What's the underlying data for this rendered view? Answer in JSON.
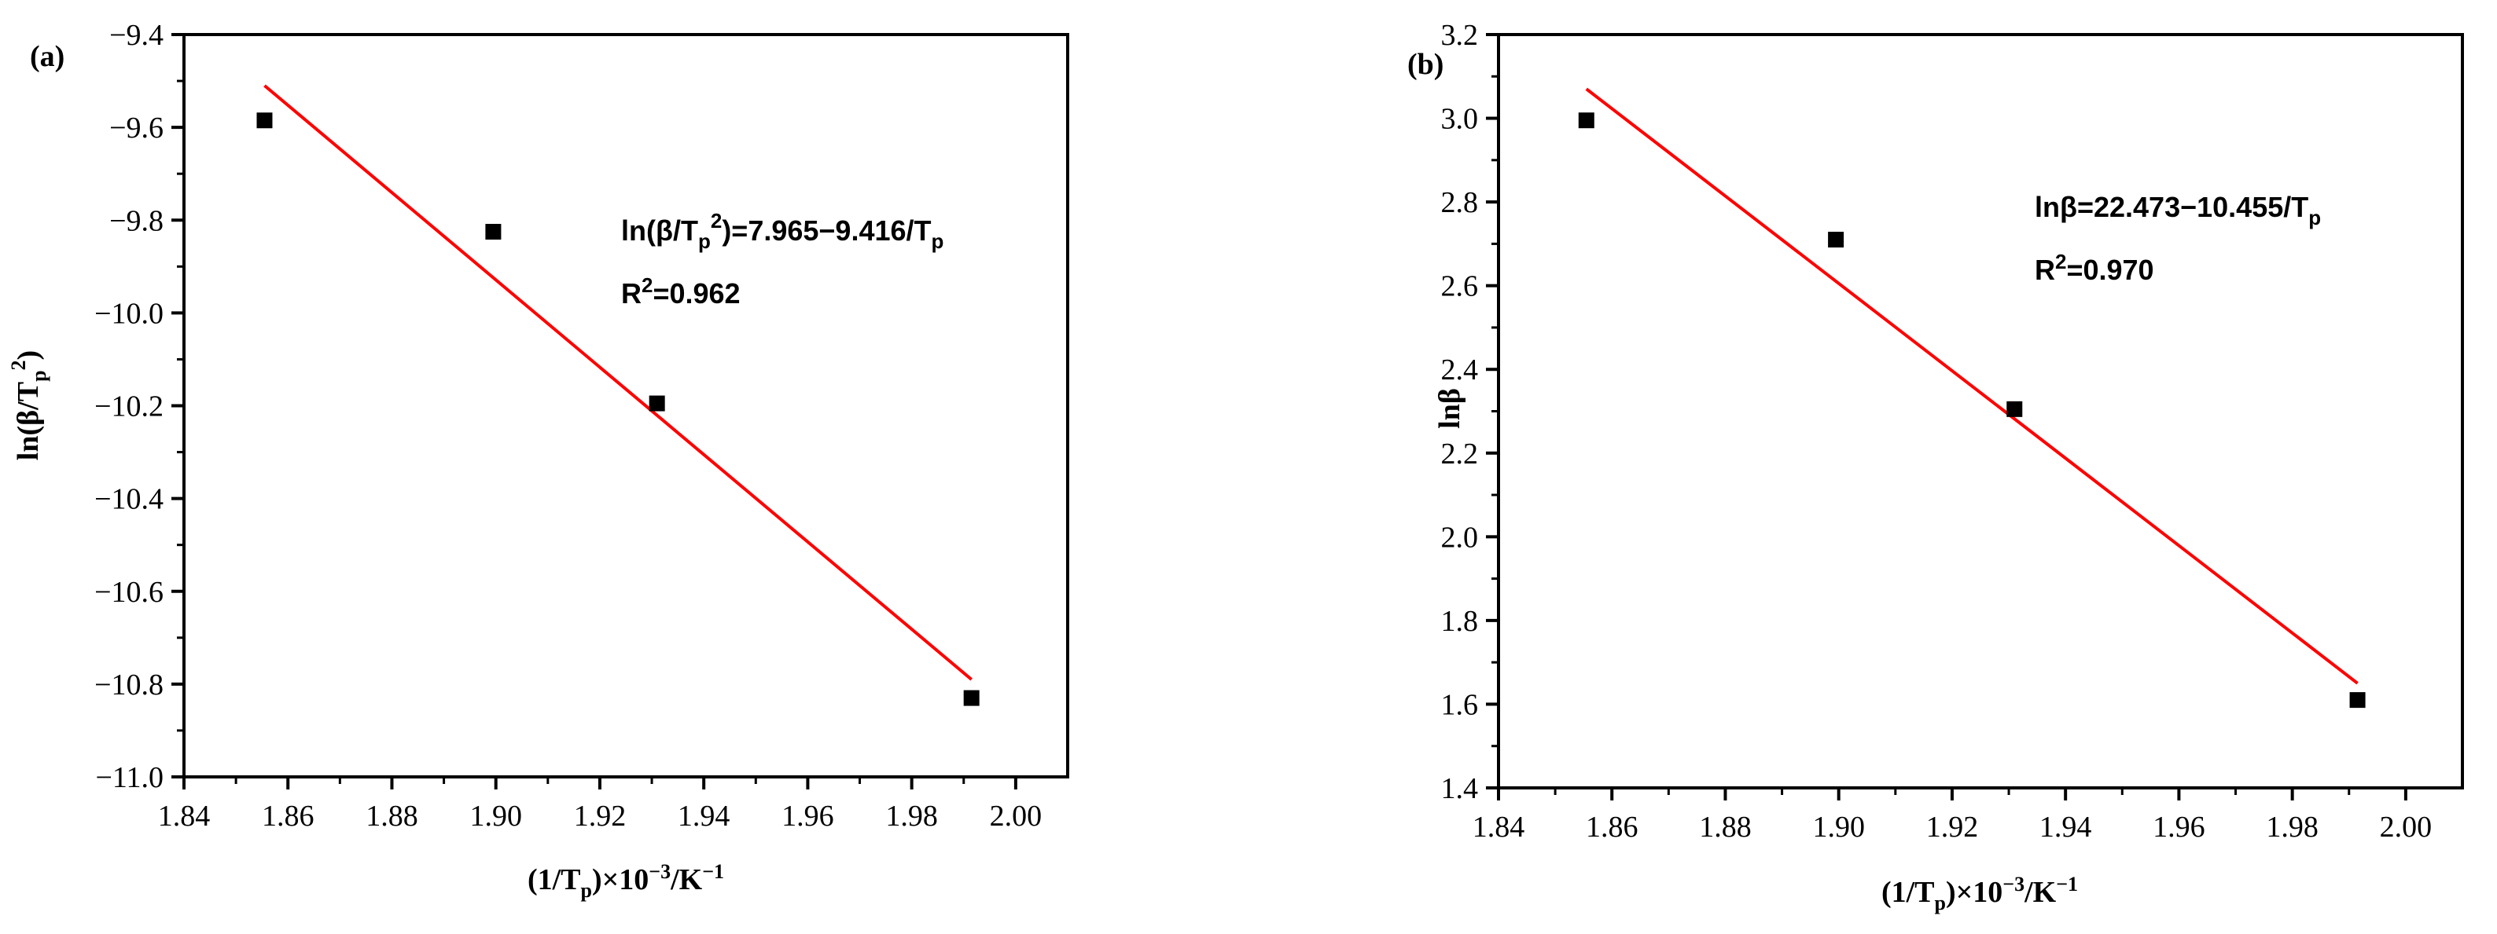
{
  "chart_data": [
    {
      "type": "scatter",
      "panel_label": "(a)",
      "xlabel_parts": [
        "(1/T",
        "p",
        ")×10",
        "−3",
        "/K",
        "−1"
      ],
      "ylabel_parts": [
        "ln(β/T",
        "p",
        "2",
        ")"
      ],
      "xlim": [
        1.84,
        2.01
      ],
      "ylim": [
        -11.0,
        -9.4
      ],
      "xticks": [
        1.84,
        1.86,
        1.88,
        1.9,
        1.92,
        1.94,
        1.96,
        1.98,
        2.0
      ],
      "xtick_labels": [
        "1.84",
        "1.86",
        "1.88",
        "1.90",
        "1.92",
        "1.94",
        "1.96",
        "1.98",
        "2.00"
      ],
      "yticks": [
        -11.0,
        -10.8,
        -10.6,
        -10.4,
        -10.2,
        -10.0,
        -9.8,
        -9.6,
        -9.4
      ],
      "ytick_labels": [
        "−11.0",
        "−10.8",
        "−10.6",
        "−10.4",
        "−10.2",
        "−10.0",
        "−9.8",
        "−9.6",
        "−9.4"
      ],
      "series": [
        {
          "x": [
            1.8555,
            1.8995,
            1.931,
            1.9915
          ],
          "y": [
            -9.585,
            -9.825,
            -10.195,
            -10.83
          ],
          "marker_color": "#000000"
        }
      ],
      "fit_line": {
        "x": [
          1.8555,
          1.9915
        ],
        "y": [
          -9.51,
          -10.79
        ],
        "color": "#ff0000"
      },
      "equation_parts": [
        "ln(β/T",
        "p",
        "2",
        ")=7.965−9.416/T",
        "p"
      ],
      "r2_parts": [
        "R",
        "2",
        "=0.962"
      ]
    },
    {
      "type": "scatter",
      "panel_label": "(b)",
      "xlabel_parts": [
        "(1/T",
        "p",
        ")×10",
        "−3",
        "/K",
        "−1"
      ],
      "ylabel": "lnβ",
      "xlim": [
        1.84,
        2.01
      ],
      "ylim": [
        1.4,
        3.2
      ],
      "xticks": [
        1.84,
        1.86,
        1.88,
        1.9,
        1.92,
        1.94,
        1.96,
        1.98,
        2.0
      ],
      "xtick_labels": [
        "1.84",
        "1.86",
        "1.88",
        "1.90",
        "1.92",
        "1.94",
        "1.96",
        "1.98",
        "2.00"
      ],
      "yticks": [
        1.4,
        1.6,
        1.8,
        2.0,
        2.2,
        2.4,
        2.6,
        2.8,
        3.0,
        3.2
      ],
      "ytick_labels": [
        "1.4",
        "1.6",
        "1.8",
        "2.0",
        "2.2",
        "2.4",
        "2.6",
        "2.8",
        "3.0",
        "3.2"
      ],
      "series": [
        {
          "x": [
            1.8555,
            1.8995,
            1.931,
            1.9915
          ],
          "y": [
            2.995,
            2.71,
            2.305,
            1.61
          ],
          "marker_color": "#000000"
        }
      ],
      "fit_line": {
        "x": [
          1.8555,
          1.9915
        ],
        "y": [
          3.07,
          1.65
        ],
        "color": "#ff0000"
      },
      "equation_parts": [
        "lnβ=22.473−10.455/T",
        "p"
      ],
      "r2_parts": [
        "R",
        "2",
        "=0.970"
      ]
    }
  ]
}
